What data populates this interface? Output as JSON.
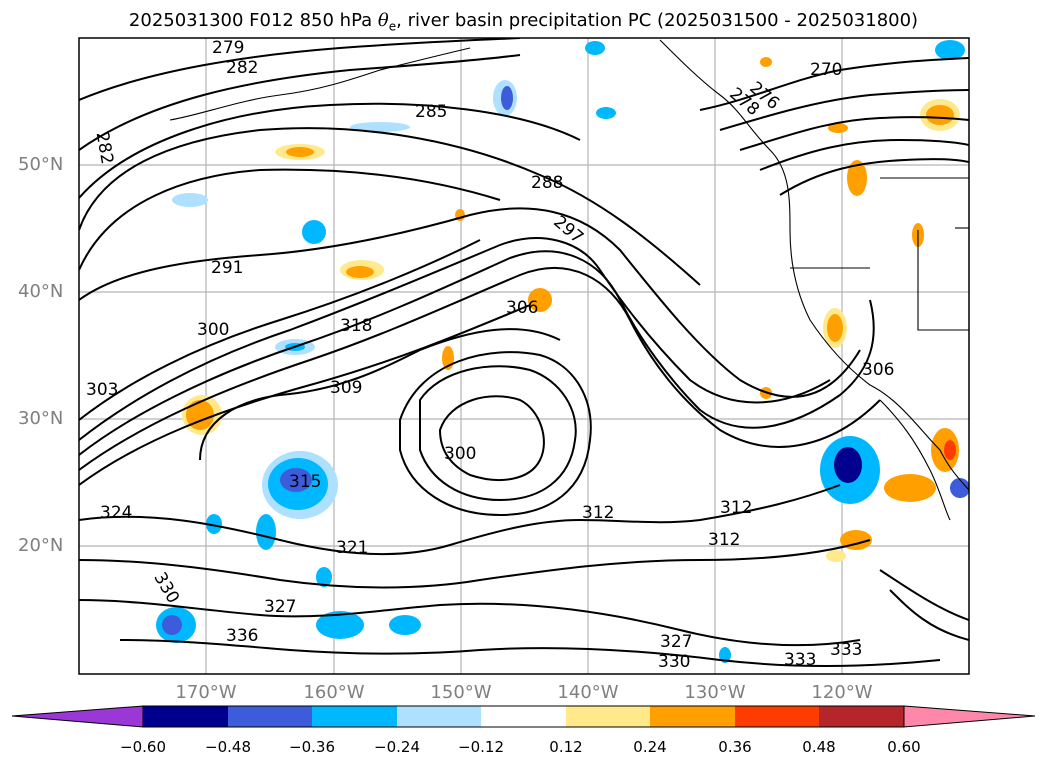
{
  "title": {
    "prefix": "2025031300 F012 850 hPa ",
    "theta": "θ",
    "subscript": "e",
    "suffix": ", river basin precipitation PC (2025031500 - 2025031800)"
  },
  "map": {
    "lat_labels": [
      "50°N",
      "40°N",
      "30°N",
      "20°N"
    ],
    "lon_labels": [
      "170°W",
      "160°W",
      "150°W",
      "140°W",
      "130°W",
      "120°W"
    ],
    "contour_labels": [
      "279",
      "282",
      "282",
      "285",
      "288",
      "291",
      "297",
      "300",
      "303",
      "306",
      "306",
      "309",
      "315",
      "318",
      "321",
      "324",
      "327",
      "327",
      "330",
      "330",
      "333",
      "333",
      "336",
      "300",
      "312",
      "312",
      "312",
      "270",
      "276",
      "278"
    ]
  },
  "colorbar": {
    "ticks": [
      "−0.60",
      "−0.48",
      "−0.36",
      "−0.24",
      "−0.12",
      "0.12",
      "0.24",
      "0.36",
      "0.48",
      "0.60"
    ],
    "colors": [
      "#9a37d6",
      "#00008f",
      "#3c5cdc",
      "#00b8ff",
      "#aee0ff",
      "#ffffff",
      "#ffe98a",
      "#ffa000",
      "#ff3c00",
      "#b5262a",
      "#ff88aa"
    ]
  }
}
